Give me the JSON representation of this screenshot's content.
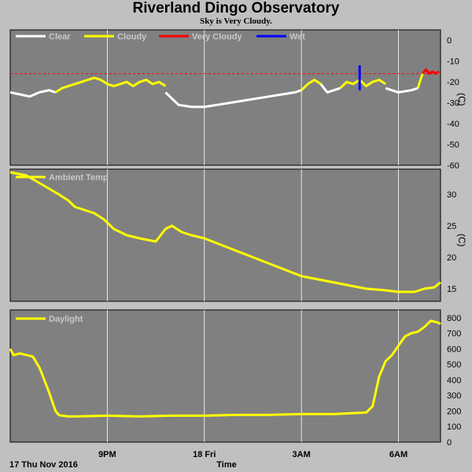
{
  "title": "Riverland Dingo Observatory",
  "subtitle": "Sky is Very Cloudy.",
  "start_label": "17 Thu Nov 2016",
  "xaxis_title": "Time",
  "x_ticks": [
    {
      "label": "9PM",
      "t": 3
    },
    {
      "label": "18 Fri",
      "t": 6
    },
    {
      "label": "3AM",
      "t": 9
    },
    {
      "label": "6AM",
      "t": 12
    }
  ],
  "colors": {
    "background": "#c0c0c0",
    "panel": "#808080",
    "grid": "#ffffff",
    "clear": "#ffffff",
    "cloudy": "#ffff00",
    "very_cloudy": "#ff0000",
    "wet": "#0000ff",
    "threshold": "#ff0000"
  },
  "chart_data": [
    {
      "type": "line",
      "panel": "sky",
      "ylabel": "(C)",
      "ylim": [
        -60,
        5
      ],
      "yticks": [
        0,
        -10,
        -20,
        -30,
        -40,
        -50,
        -60
      ],
      "threshold": -16,
      "legend": [
        {
          "name": "Clear",
          "color": "#ffffff"
        },
        {
          "name": "Cloudy",
          "color": "#ffff00"
        },
        {
          "name": "Very Cloudy",
          "color": "#ff0000"
        },
        {
          "name": "Wet",
          "color": "#0000ff"
        }
      ],
      "series": [
        {
          "name": "Clear",
          "color": "#ffffff",
          "x": [
            0,
            0.3,
            0.6,
            0.9,
            1.2,
            1.4
          ],
          "y": [
            -25,
            -26,
            -27,
            -25,
            -24,
            -25
          ]
        },
        {
          "name": "Cloudy",
          "color": "#ffff00",
          "x": [
            1.4,
            1.6,
            1.8,
            2.0,
            2.2,
            2.4,
            2.6,
            2.8,
            3.0,
            3.2,
            3.4,
            3.6,
            3.8,
            4.0,
            4.2,
            4.4,
            4.6,
            4.8
          ],
          "y": [
            -25,
            -23,
            -22,
            -21,
            -20,
            -19,
            -18,
            -19,
            -21,
            -22,
            -21,
            -20,
            -22,
            -20,
            -19,
            -21,
            -20,
            -22
          ]
        },
        {
          "name": "Clear",
          "color": "#ffffff",
          "x": [
            4.8,
            5.2,
            5.6,
            6.0,
            6.4,
            6.8,
            7.2,
            7.6,
            8.0,
            8.4,
            8.8,
            9.0
          ],
          "y": [
            -25,
            -31,
            -32,
            -32,
            -31,
            -30,
            -29,
            -28,
            -27,
            -26,
            -25,
            -24
          ]
        },
        {
          "name": "Cloudy",
          "color": "#ffff00",
          "x": [
            9.0,
            9.2,
            9.4,
            9.6
          ],
          "y": [
            -24,
            -21,
            -19,
            -21
          ]
        },
        {
          "name": "Clear",
          "color": "#ffffff",
          "x": [
            9.6,
            9.8,
            10.0,
            10.2
          ],
          "y": [
            -21,
            -25,
            -24,
            -23
          ]
        },
        {
          "name": "Cloudy",
          "color": "#ffff00",
          "x": [
            10.2,
            10.4,
            10.6,
            10.8,
            11.0,
            11.2,
            11.4,
            11.6
          ],
          "y": [
            -23,
            -20,
            -21,
            -19,
            -22,
            -20,
            -19,
            -21
          ]
        },
        {
          "name": "Clear",
          "color": "#ffffff",
          "x": [
            11.6,
            12.0,
            12.4,
            12.6
          ],
          "y": [
            -23,
            -25,
            -24,
            -23
          ]
        },
        {
          "name": "Cloudy",
          "color": "#ffff00",
          "x": [
            12.6,
            12.7,
            12.75
          ],
          "y": [
            -23,
            -18,
            -16
          ]
        },
        {
          "name": "Very Cloudy",
          "color": "#ff0000",
          "x": [
            12.75,
            12.85,
            12.95,
            13.05,
            13.15,
            13.25
          ],
          "y": [
            -16,
            -14,
            -16,
            -15,
            -16,
            -15
          ]
        }
      ],
      "wet_events": [
        {
          "x": 10.8,
          "y_top": -12,
          "y_bottom": -24
        }
      ]
    },
    {
      "type": "line",
      "panel": "ambient",
      "ylabel": "(C)",
      "ylim": [
        13,
        34
      ],
      "yticks": [
        30,
        25,
        20,
        15
      ],
      "series": [
        {
          "name": "Ambient Temp",
          "color": "#ffff00",
          "x": [
            0,
            0.5,
            1.0,
            1.5,
            1.8,
            2.0,
            2.3,
            2.6,
            2.9,
            3.2,
            3.6,
            4.0,
            4.5,
            4.8,
            5.0,
            5.3,
            5.6,
            6.0,
            6.5,
            7.0,
            7.5,
            8.0,
            8.5,
            9.0,
            9.5,
            10.0,
            10.5,
            11.0,
            11.5,
            12.0,
            12.5,
            12.8,
            13.1,
            13.3
          ],
          "y": [
            33.5,
            33,
            31.5,
            30,
            29,
            28,
            27.5,
            27,
            26,
            24.5,
            23.5,
            23,
            22.5,
            24.5,
            25,
            24,
            23.5,
            23,
            22,
            21,
            20,
            19,
            18,
            17,
            16.5,
            16,
            15.5,
            15,
            14.8,
            14.5,
            14.5,
            15,
            15.2,
            16
          ]
        }
      ]
    },
    {
      "type": "line",
      "panel": "daylight",
      "ylabel": "",
      "ylim": [
        0,
        850
      ],
      "yticks": [
        800,
        700,
        600,
        500,
        400,
        300,
        200,
        100,
        0
      ],
      "series": [
        {
          "name": "Daylight",
          "color": "#ffff00",
          "x": [
            0,
            0.1,
            0.3,
            0.5,
            0.7,
            0.9,
            1.0,
            1.2,
            1.4,
            1.5,
            1.6,
            1.8,
            2.0,
            3.0,
            4.0,
            5.0,
            6.0,
            7.0,
            8.0,
            9.0,
            10.0,
            11.0,
            11.2,
            11.4,
            11.6,
            11.8,
            12.0,
            12.2,
            12.4,
            12.6,
            12.8,
            13.0,
            13.2,
            13.3
          ],
          "y": [
            600,
            560,
            570,
            560,
            550,
            480,
            430,
            320,
            200,
            175,
            170,
            165,
            165,
            170,
            165,
            170,
            170,
            175,
            175,
            180,
            180,
            190,
            230,
            420,
            520,
            560,
            620,
            680,
            700,
            710,
            740,
            780,
            770,
            760
          ]
        }
      ]
    }
  ]
}
